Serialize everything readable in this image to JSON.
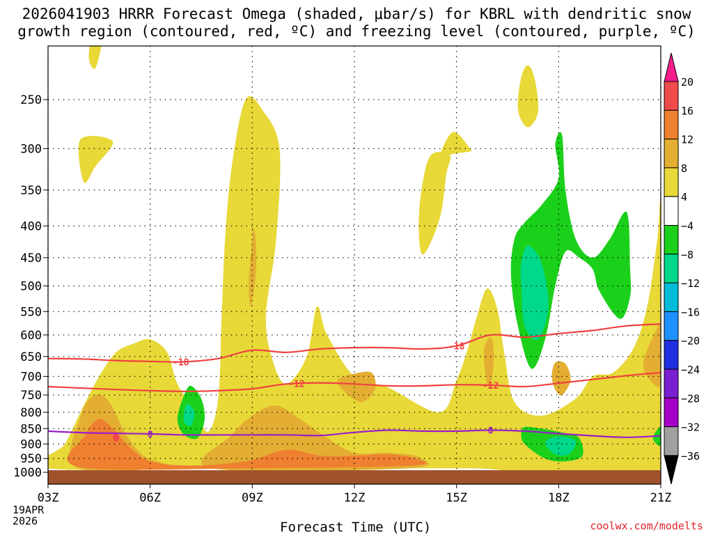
{
  "title_line1": "2026041903 HRRR Forecast Omega (shaded, μbar/s) for KBRL with dendritic snow",
  "title_line2": "growth region (contoured, red, ºC) and freezing level (contoured, purple, ºC)",
  "credit": "coolwx.com/modelts",
  "chart_data": {
    "type": "heatmap",
    "title": "2026041903 HRRR Forecast Omega (shaded, μbar/s) for KBRL with dendritic snow growth region (contoured, red, ºC) and freezing level (contoured, purple, ºC)",
    "xlabel": "Forecast Time (UTC)",
    "ylabel": "",
    "x_ticks": [
      "03Z",
      "06Z",
      "09Z",
      "12Z",
      "15Z",
      "18Z",
      "21Z"
    ],
    "x_range_hours": [
      3,
      21
    ],
    "date_label": [
      "19APR",
      "2026"
    ],
    "y_ticks": [
      "250",
      "300",
      "350",
      "400",
      "450",
      "500",
      "550",
      "600",
      "650",
      "700",
      "750",
      "800",
      "850",
      "900",
      "950",
      "1000"
    ],
    "y_range_hpa": [
      200,
      1000
    ],
    "colorbar": {
      "labels": [
        "20",
        "16",
        "12",
        "8",
        "4",
        "−4",
        "−8",
        "−12",
        "−16",
        "−20",
        "−24",
        "−28",
        "−32",
        "−36"
      ],
      "colors": [
        "#f51c8c",
        "#f04a4a",
        "#ef8030",
        "#e3ae32",
        "#e8d838",
        "#ffffff",
        "#1bd01b",
        "#00d88a",
        "#00bcd8",
        "#1e90ff",
        "#2030e0",
        "#7a1fd0",
        "#a600c9",
        "#a0a0a0",
        "#000000"
      ]
    },
    "contours": [
      {
        "name": "−18",
        "color": "#f04040",
        "label": "-18",
        "points": [
          [
            3.0,
            655
          ],
          [
            4.0,
            656
          ],
          [
            5.0,
            660
          ],
          [
            6.0,
            662
          ],
          [
            7.0,
            663
          ],
          [
            8.0,
            655
          ],
          [
            9.0,
            635
          ],
          [
            10.0,
            640
          ],
          [
            11.0,
            632
          ],
          [
            12.0,
            629
          ],
          [
            13.0,
            629
          ],
          [
            14.0,
            632
          ],
          [
            15.0,
            625
          ],
          [
            16.0,
            600
          ],
          [
            17.0,
            605
          ],
          [
            18.0,
            597
          ],
          [
            19.0,
            590
          ],
          [
            20.0,
            580
          ],
          [
            21.0,
            576
          ]
        ]
      },
      {
        "name": "−12",
        "color": "#f04040",
        "label": "-12",
        "points": [
          [
            3.0,
            727
          ],
          [
            4.0,
            731
          ],
          [
            5.0,
            735
          ],
          [
            6.0,
            738
          ],
          [
            7.0,
            740
          ],
          [
            8.0,
            738
          ],
          [
            9.0,
            733
          ],
          [
            10.0,
            720
          ],
          [
            11.0,
            717
          ],
          [
            12.0,
            720
          ],
          [
            13.0,
            725
          ],
          [
            14.0,
            725
          ],
          [
            15.0,
            722
          ],
          [
            16.0,
            723
          ],
          [
            17.0,
            727
          ],
          [
            18.0,
            718
          ],
          [
            19.0,
            708
          ],
          [
            20.0,
            698
          ],
          [
            21.0,
            690
          ]
        ]
      },
      {
        "name": "0",
        "color": "#9a1fc8",
        "label": "0",
        "points": [
          [
            3.0,
            858
          ],
          [
            4.0,
            863
          ],
          [
            5.0,
            865
          ],
          [
            6.0,
            867
          ],
          [
            7.0,
            870
          ],
          [
            8.0,
            870
          ],
          [
            9.0,
            870
          ],
          [
            10.0,
            870
          ],
          [
            11.0,
            872
          ],
          [
            12.0,
            862
          ],
          [
            13.0,
            855
          ],
          [
            14.0,
            858
          ],
          [
            15.0,
            858
          ],
          [
            16.0,
            855
          ],
          [
            17.0,
            858
          ],
          [
            18.0,
            866
          ],
          [
            19.0,
            873
          ],
          [
            20.0,
            878
          ],
          [
            21.0,
            873
          ]
        ]
      }
    ],
    "regions": [
      {
        "name": "omega-4-8",
        "level": "4 to 8",
        "color": "#e8d838",
        "points": [
          [
            3.0,
            985
          ],
          [
            3.5,
            900
          ],
          [
            4.0,
            790
          ],
          [
            4.5,
            700
          ],
          [
            5.0,
            640
          ],
          [
            5.5,
            620
          ],
          [
            6.0,
            610
          ],
          [
            6.5,
            640
          ],
          [
            6.8,
            720
          ],
          [
            7.3,
            790
          ],
          [
            7.7,
            860
          ],
          [
            8.0,
            760
          ],
          [
            8.1,
            560
          ],
          [
            8.2,
            420
          ],
          [
            8.4,
            320
          ],
          [
            8.8,
            250
          ],
          [
            9.3,
            260
          ],
          [
            9.8,
            300
          ],
          [
            9.7,
            420
          ],
          [
            9.4,
            560
          ],
          [
            9.6,
            660
          ],
          [
            10.0,
            720
          ],
          [
            10.6,
            650
          ],
          [
            10.9,
            540
          ],
          [
            11.2,
            600
          ],
          [
            12.0,
            700
          ],
          [
            13.0,
            730
          ],
          [
            14.5,
            800
          ],
          [
            15.0,
            710
          ],
          [
            15.3,
            640
          ],
          [
            15.6,
            560
          ],
          [
            15.9,
            505
          ],
          [
            16.2,
            545
          ],
          [
            16.4,
            640
          ],
          [
            16.7,
            770
          ],
          [
            17.5,
            810
          ],
          [
            18.5,
            760
          ],
          [
            19.0,
            700
          ],
          [
            19.6,
            690
          ],
          [
            20.2,
            630
          ],
          [
            20.6,
            540
          ],
          [
            20.9,
            420
          ],
          [
            21.0,
            380
          ],
          [
            21.0,
            985
          ],
          [
            15.5,
            985
          ],
          [
            9.0,
            985
          ]
        ]
      },
      {
        "name": "omega-4-8-upper-1",
        "level": "4 to 8",
        "color": "#e8d838",
        "points": [
          [
            4.05,
            340
          ],
          [
            3.95,
            290
          ],
          [
            4.9,
            292
          ],
          [
            4.4,
            320
          ]
        ]
      },
      {
        "name": "omega-4-8-upper-2",
        "level": "4 to 8",
        "color": "#e8d838",
        "points": [
          [
            14.5,
            310
          ],
          [
            14.9,
            282
          ],
          [
            15.4,
            300
          ],
          [
            15.4,
            303
          ],
          [
            14.9,
            306
          ]
        ]
      },
      {
        "name": "omega-4-8-upper-3",
        "level": "4 to 8",
        "color": "#e8d838",
        "points": [
          [
            14.8,
            308
          ],
          [
            14.2,
            310
          ],
          [
            13.9,
            380
          ],
          [
            14.0,
            445
          ],
          [
            14.5,
            390
          ],
          [
            14.7,
            330
          ]
        ]
      },
      {
        "name": "omega-4-8-top-left",
        "level": "4 to 8",
        "color": "#e8d838",
        "points": [
          [
            4.2,
            215
          ],
          [
            4.3,
            197
          ],
          [
            4.6,
            197
          ],
          [
            4.4,
            222
          ]
        ]
      },
      {
        "name": "omega-4-8-top-right",
        "level": "4 to 8",
        "color": "#e8d838",
        "points": [
          [
            16.8,
            258
          ],
          [
            16.9,
            230
          ],
          [
            17.1,
            220
          ],
          [
            17.3,
            232
          ],
          [
            17.4,
            260
          ],
          [
            17.2,
            275
          ],
          [
            17.0,
            275
          ]
        ]
      },
      {
        "name": "omega-8-12",
        "level": "8 to 12",
        "color": "#e3ae32",
        "points": [
          [
            3.8,
            980
          ],
          [
            4.0,
            800
          ],
          [
            4.4,
            750
          ],
          [
            4.8,
            770
          ],
          [
            5.3,
            870
          ],
          [
            5.8,
            940
          ],
          [
            6.5,
            980
          ]
        ]
      },
      {
        "name": "omega-8-12-b",
        "level": "8 to 12",
        "color": "#e3ae32",
        "points": [
          [
            7.8,
            985
          ],
          [
            8.4,
            870
          ],
          [
            9.0,
            810
          ],
          [
            9.7,
            780
          ],
          [
            10.4,
            820
          ],
          [
            11.2,
            880
          ],
          [
            12.0,
            930
          ],
          [
            13.0,
            930
          ],
          [
            13.9,
            945
          ],
          [
            13.6,
            985
          ]
        ]
      },
      {
        "name": "omega-8-12-c",
        "level": "8 to 12",
        "color": "#e3ae32",
        "points": [
          [
            9.0,
            420
          ],
          [
            8.9,
            490
          ],
          [
            8.95,
            540
          ],
          [
            9.1,
            480
          ],
          [
            9.1,
            420
          ],
          [
            9.0,
            400
          ]
        ]
      },
      {
        "name": "omega-8-12-d",
        "level": "8 to 12",
        "color": "#e3ae32",
        "points": [
          [
            11.5,
            710
          ],
          [
            11.9,
            695
          ],
          [
            12.5,
            690
          ],
          [
            12.6,
            735
          ],
          [
            12.2,
            770
          ],
          [
            11.7,
            740
          ]
        ]
      },
      {
        "name": "omega-8-12-e",
        "level": "8 to 12",
        "color": "#e3ae32",
        "points": [
          [
            15.8,
            640
          ],
          [
            16.0,
            605
          ],
          [
            16.1,
            650
          ],
          [
            16.0,
            725
          ],
          [
            15.9,
            720
          ]
        ]
      },
      {
        "name": "omega-8-12-f",
        "level": "8 to 12",
        "color": "#e3ae32",
        "points": [
          [
            17.8,
            700
          ],
          [
            17.9,
            665
          ],
          [
            18.2,
            668
          ],
          [
            18.35,
            710
          ],
          [
            18.1,
            750
          ],
          [
            17.9,
            735
          ]
        ]
      },
      {
        "name": "omega-8-12-g",
        "level": "8 to 12",
        "color": "#e3ae32",
        "points": [
          [
            20.5,
            660
          ],
          [
            20.8,
            600
          ],
          [
            21.0,
            585
          ],
          [
            21.0,
            720
          ],
          [
            20.6,
            700
          ]
        ]
      },
      {
        "name": "omega-12-16",
        "level": "12 to 16",
        "color": "#ef8030",
        "points": [
          [
            3.9,
            980
          ],
          [
            4.1,
            870
          ],
          [
            4.5,
            820
          ],
          [
            4.9,
            850
          ],
          [
            5.4,
            910
          ],
          [
            6.0,
            960
          ],
          [
            7.2,
            975
          ],
          [
            8.8,
            960
          ],
          [
            10.0,
            920
          ],
          [
            11.0,
            940
          ],
          [
            12.0,
            940
          ],
          [
            13.0,
            935
          ],
          [
            13.8,
            950
          ],
          [
            13.7,
            975
          ],
          [
            9.0,
            985
          ]
        ]
      },
      {
        "name": "omega-16-20",
        "level": "16 to 20",
        "color": "#f04a4a",
        "points": [
          [
            4.9,
            878
          ],
          [
            5.0,
            865
          ],
          [
            5.1,
            878
          ],
          [
            5.0,
            893
          ]
        ]
      },
      {
        "name": "omega-neg4-neg8-a",
        "level": "-4 to -8",
        "color": "#1bd01b",
        "points": [
          [
            6.8,
            820
          ],
          [
            7.0,
            750
          ],
          [
            7.2,
            725
          ],
          [
            7.5,
            760
          ],
          [
            7.6,
            820
          ],
          [
            7.4,
            880
          ],
          [
            7.0,
            870
          ]
        ]
      },
      {
        "name": "omega-neg4-neg8-b",
        "level": "-4 to -8",
        "color": "#1bd01b",
        "points": [
          [
            16.7,
            420
          ],
          [
            17.0,
            395
          ],
          [
            17.5,
            370
          ],
          [
            18.0,
            335
          ],
          [
            17.9,
            295
          ],
          [
            18.1,
            285
          ],
          [
            18.2,
            350
          ],
          [
            18.5,
            420
          ],
          [
            19.0,
            450
          ],
          [
            19.5,
            420
          ],
          [
            20.0,
            380
          ],
          [
            20.1,
            470
          ],
          [
            20.1,
            520
          ],
          [
            19.8,
            565
          ],
          [
            19.2,
            510
          ],
          [
            19.0,
            470
          ],
          [
            18.6,
            450
          ],
          [
            18.2,
            440
          ],
          [
            17.9,
            500
          ],
          [
            17.6,
            610
          ],
          [
            17.2,
            680
          ],
          [
            16.8,
            580
          ],
          [
            16.6,
            480
          ]
        ]
      },
      {
        "name": "omega-neg4-neg8-c",
        "level": "-4 to -8",
        "color": "#1bd01b",
        "points": [
          [
            16.9,
            865
          ],
          [
            17.0,
            845
          ],
          [
            17.5,
            850
          ],
          [
            18.2,
            865
          ],
          [
            18.6,
            880
          ],
          [
            18.7,
            940
          ],
          [
            18.2,
            960
          ],
          [
            17.6,
            950
          ],
          [
            17.0,
            900
          ]
        ]
      },
      {
        "name": "omega-neg4-neg8-d",
        "level": "-4 to -8",
        "color": "#1bd01b",
        "points": [
          [
            20.8,
            870
          ],
          [
            21.0,
            845
          ],
          [
            21.0,
            905
          ],
          [
            20.8,
            890
          ]
        ]
      },
      {
        "name": "omega-neg8-neg12",
        "level": "-8 to -12",
        "color": "#00d88a",
        "points": [
          [
            16.9,
            460
          ],
          [
            17.1,
            430
          ],
          [
            17.5,
            460
          ],
          [
            17.7,
            540
          ],
          [
            17.4,
            610
          ],
          [
            17.0,
            580
          ],
          [
            16.9,
            500
          ]
        ]
      },
      {
        "name": "omega-neg8-neg12-b",
        "level": "-8 to -12",
        "color": "#00d88a",
        "points": [
          [
            7.0,
            800
          ],
          [
            7.1,
            775
          ],
          [
            7.3,
            800
          ],
          [
            7.2,
            840
          ],
          [
            7.0,
            830
          ]
        ]
      },
      {
        "name": "omega-neg8-neg12-c",
        "level": "-8 to -12",
        "color": "#00d88a",
        "points": [
          [
            17.6,
            895
          ],
          [
            18.0,
            875
          ],
          [
            18.5,
            890
          ],
          [
            18.3,
            935
          ],
          [
            17.9,
            935
          ]
        ]
      }
    ]
  }
}
